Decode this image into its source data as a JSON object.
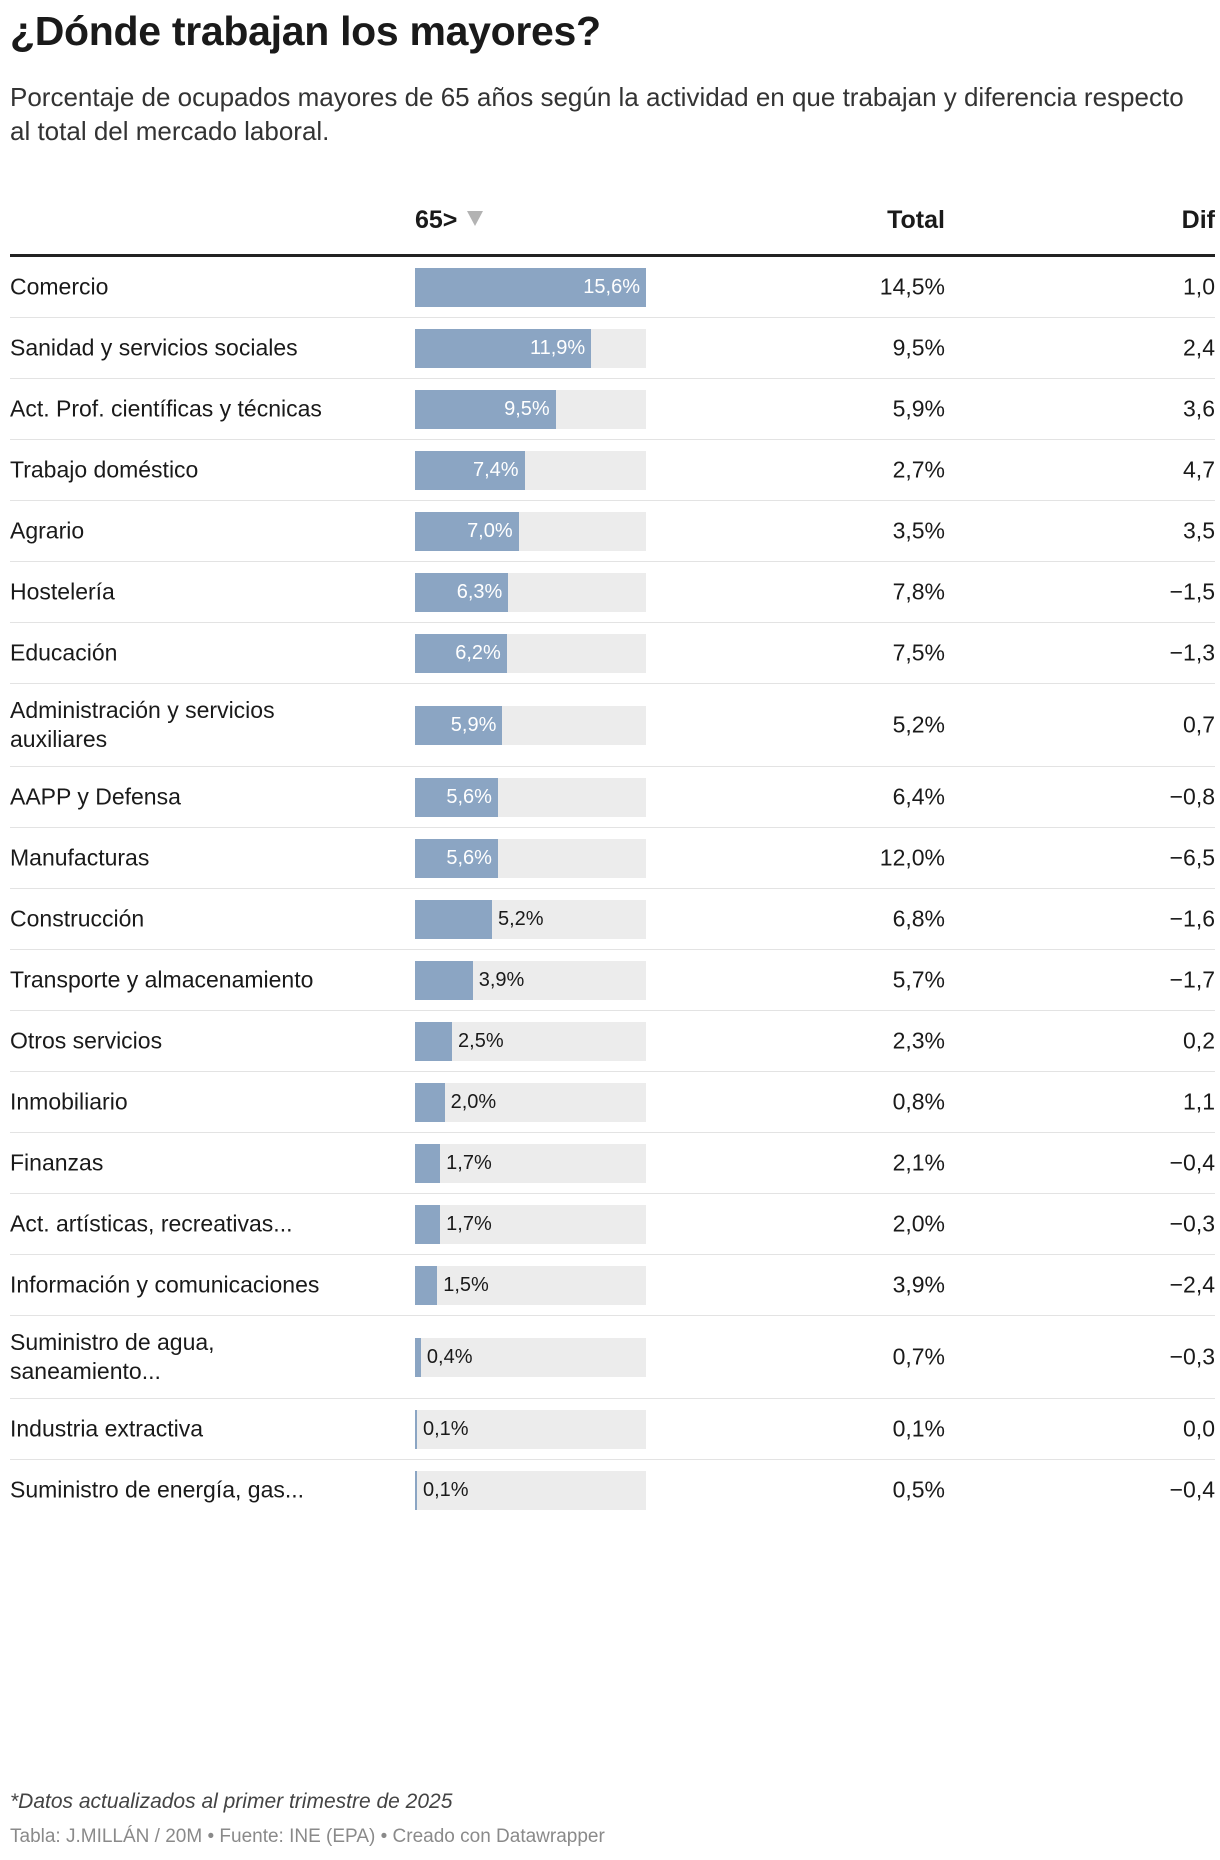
{
  "title": "¿Dónde trabajan los mayores?",
  "subtitle": "Porcentaje de ocupados mayores de 65 años según la actividad en que trabajan y diferencia respecto al total del mercado laboral.",
  "headers": {
    "col_65": "65>",
    "col_total": "Total",
    "col_dif": "Dif"
  },
  "chart_data": {
    "type": "table",
    "bar_column": "65>",
    "bar_max": 15.6,
    "sort": "descending by 65>",
    "colors": {
      "bar": "#8ba5c3",
      "track": "#ececec",
      "header_rule": "#222222",
      "row_rule": "#e3e3e3",
      "sort_icon": "#b3b3b3"
    },
    "rows": [
      {
        "category": "Comercio",
        "v65": 15.6,
        "v65_label": "15,6%",
        "total": "14,5%",
        "dif": "1,0"
      },
      {
        "category": "Sanidad y servicios sociales",
        "v65": 11.9,
        "v65_label": "11,9%",
        "total": "9,5%",
        "dif": "2,4"
      },
      {
        "category": "Act. Prof. científicas y técnicas",
        "v65": 9.5,
        "v65_label": "9,5%",
        "total": "5,9%",
        "dif": "3,6"
      },
      {
        "category": "Trabajo doméstico",
        "v65": 7.4,
        "v65_label": "7,4%",
        "total": "2,7%",
        "dif": "4,7"
      },
      {
        "category": "Agrario",
        "v65": 7.0,
        "v65_label": "7,0%",
        "total": "3,5%",
        "dif": "3,5"
      },
      {
        "category": "Hostelería",
        "v65": 6.3,
        "v65_label": "6,3%",
        "total": "7,8%",
        "dif": "−1,5"
      },
      {
        "category": "Educación",
        "v65": 6.2,
        "v65_label": "6,2%",
        "total": "7,5%",
        "dif": "−1,3"
      },
      {
        "category": "Administración y servicios auxiliares",
        "v65": 5.9,
        "v65_label": "5,9%",
        "total": "5,2%",
        "dif": "0,7",
        "multiline": true
      },
      {
        "category": "AAPP y Defensa",
        "v65": 5.6,
        "v65_label": "5,6%",
        "total": "6,4%",
        "dif": "−0,8"
      },
      {
        "category": "Manufacturas",
        "v65": 5.6,
        "v65_label": "5,6%",
        "total": "12,0%",
        "dif": "−6,5"
      },
      {
        "category": "Construcción",
        "v65": 5.2,
        "v65_label": "5,2%",
        "total": "6,8%",
        "dif": "−1,6"
      },
      {
        "category": "Transporte y almacenamiento",
        "v65": 3.9,
        "v65_label": "3,9%",
        "total": "5,7%",
        "dif": "−1,7"
      },
      {
        "category": "Otros servicios",
        "v65": 2.5,
        "v65_label": "2,5%",
        "total": "2,3%",
        "dif": "0,2"
      },
      {
        "category": "Inmobiliario",
        "v65": 2.0,
        "v65_label": "2,0%",
        "total": "0,8%",
        "dif": "1,1"
      },
      {
        "category": "Finanzas",
        "v65": 1.7,
        "v65_label": "1,7%",
        "total": "2,1%",
        "dif": "−0,4"
      },
      {
        "category": "Act. artísticas, recreativas...",
        "v65": 1.7,
        "v65_label": "1,7%",
        "total": "2,0%",
        "dif": "−0,3"
      },
      {
        "category": "Información y comunicaciones",
        "v65": 1.5,
        "v65_label": "1,5%",
        "total": "3,9%",
        "dif": "−2,4"
      },
      {
        "category": "Suministro de agua, saneamiento...",
        "v65": 0.4,
        "v65_label": "0,4%",
        "total": "0,7%",
        "dif": "−0,3",
        "multiline": true
      },
      {
        "category": "Industria extractiva",
        "v65": 0.1,
        "v65_label": "0,1%",
        "total": "0,1%",
        "dif": "0,0"
      },
      {
        "category": "Suministro de energía, gas...",
        "v65": 0.1,
        "v65_label": "0,1%",
        "total": "0,5%",
        "dif": "−0,4"
      }
    ]
  },
  "footnote": "*Datos actualizados al primer trimestre de 2025",
  "source": "Tabla: J.MILLÁN / 20M • Fuente: INE (EPA) • Creado con Datawrapper"
}
